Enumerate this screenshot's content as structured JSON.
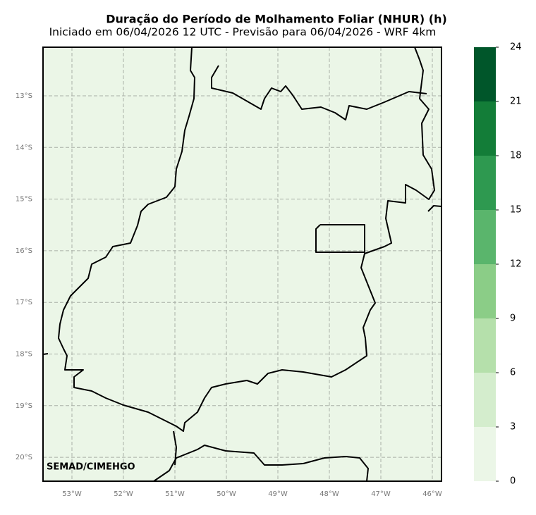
{
  "header": {
    "title": "Duração do Período de Molhamento Foliar (NHUR) (h)",
    "subtitle": "Iniciado em 06/04/2026 12 UTC - Previsão para 06/04/2026 - WRF 4km"
  },
  "map": {
    "lat_labels": [
      "13°S",
      "14°S",
      "15°S",
      "16°S",
      "17°S",
      "18°S",
      "19°S",
      "20°S"
    ],
    "lon_labels": [
      "53°W",
      "52°W",
      "51°W",
      "50°W",
      "49°W",
      "48°W",
      "47°W",
      "46°W"
    ],
    "credit": "SEMAD/CIMEHGO"
  },
  "colorbar": {
    "ticks": [
      0,
      3,
      6,
      9,
      12,
      15,
      18,
      21,
      24
    ],
    "colors": [
      "#ebf6e7",
      "#d4edcd",
      "#b5e0ab",
      "#8bcd87",
      "#5ab56c",
      "#2e9950",
      "#137d38",
      "#00562a"
    ]
  }
}
